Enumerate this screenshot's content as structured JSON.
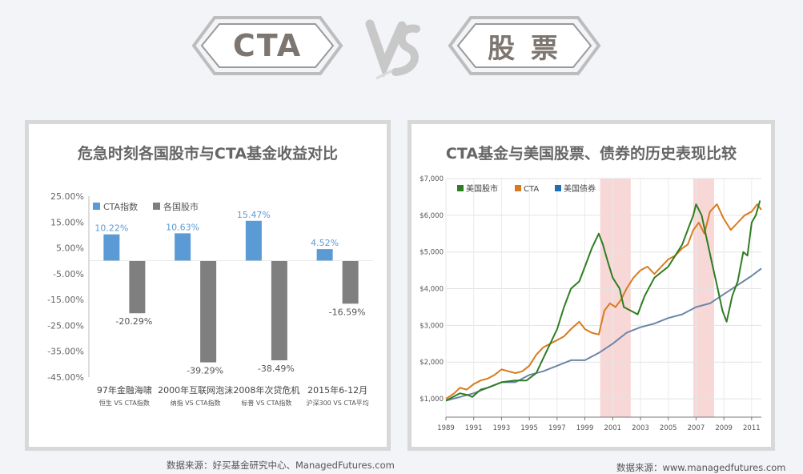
{
  "header": {
    "left_label": "CTA",
    "vs_label": "VS",
    "right_label": "股 票"
  },
  "left_panel": {
    "title": "危急时刻各国股市与CTA基金收益对比",
    "source": "数据来源：好买基金研究中心、ManagedFutures.com"
  },
  "right_panel": {
    "title": "CTA基金与美国股票、债券的历史表现比较",
    "source": "数据来源：www.managedfutures.com"
  },
  "chart_data": [
    {
      "type": "bar",
      "title": "危急时刻各国股市与CTA基金收益对比",
      "categories": [
        "97年金融海啸",
        "2000年互联网泡沫",
        "2008年次贷危机",
        "2015年6-12月"
      ],
      "subcategories": [
        "恒生 VS CTA指数",
        "纳指 VS CTA指数",
        "标普 VS CTA指数",
        "沪深300 VS CTA平均"
      ],
      "series": [
        {
          "name": "CTA指数",
          "values": [
            10.22,
            10.63,
            15.47,
            4.52
          ],
          "labels": [
            "10.22%",
            "10.63%",
            "15.47%",
            "4.52%"
          ],
          "color": "#5b9bd5"
        },
        {
          "name": "各国股市",
          "values": [
            -20.29,
            -39.29,
            -38.49,
            -16.59
          ],
          "labels": [
            "-20.29%",
            "-39.29%",
            "-38.49%",
            "-16.59%"
          ],
          "color": "#7f7f7f"
        }
      ],
      "ylim": [
        -45,
        25
      ],
      "yticks": [
        25,
        15,
        5,
        -5,
        -15,
        -25,
        -35,
        -45
      ],
      "ytick_labels": [
        "25.00%",
        "15.00%",
        "5.00%",
        "-5.00%",
        "-15.00%",
        "-25.00%",
        "-35.00%",
        "-45.00%"
      ],
      "legend_position": "top-left",
      "grid": false
    },
    {
      "type": "line",
      "title": "CTA基金与美国股票、债券的历史表现比较",
      "xlim": [
        1989,
        2011.7
      ],
      "ylim": [
        500,
        7000
      ],
      "xticks": [
        1989,
        1991,
        1993,
        1995,
        1997,
        1999,
        2001,
        2003,
        2005,
        2007,
        2009,
        2011
      ],
      "xtick_labels": [
        "1989",
        "1991",
        "1993",
        "1995",
        "1997",
        "1999",
        "2001",
        "2003",
        "2005",
        "2007",
        "2009",
        "2011"
      ],
      "yticks": [
        1000,
        2000,
        3000,
        4000,
        5000,
        6000,
        7000
      ],
      "ytick_labels": [
        "$1,000",
        "$2,000",
        "$3,000",
        "$4,000",
        "$5,000",
        "$6,000",
        "$7,000"
      ],
      "shaded_periods": [
        [
          2000.1,
          2002.3
        ],
        [
          2006.8,
          2008.3
        ]
      ],
      "legend_position": "top-left",
      "grid": true,
      "series": [
        {
          "name": "美国股市",
          "color": "#2e7d22",
          "x": [
            1989,
            1989.5,
            1990,
            1990.6,
            1990.9,
            1991.5,
            1992,
            1993,
            1994,
            1994.8,
            1995.5,
            1996,
            1996.5,
            1997,
            1997.5,
            1998,
            1998.6,
            1999,
            1999.5,
            2000,
            2000.3,
            2000.6,
            2001,
            2001.5,
            2001.8,
            2002.3,
            2002.8,
            2003.3,
            2004,
            2005,
            2005.5,
            2006,
            2006.5,
            2006.8,
            2007,
            2007.4,
            2007.8,
            2008.2,
            2008.5,
            2008.9,
            2009.2,
            2009.6,
            2010,
            2010.4,
            2010.7,
            2011,
            2011.3,
            2011.6
          ],
          "y": [
            950,
            1050,
            1150,
            1100,
            1050,
            1250,
            1300,
            1450,
            1500,
            1500,
            1700,
            2100,
            2500,
            2900,
            3500,
            4000,
            4200,
            4600,
            5100,
            5500,
            5200,
            4800,
            4300,
            4000,
            3500,
            3400,
            3300,
            3800,
            4300,
            4600,
            4900,
            5200,
            5700,
            6000,
            6300,
            6000,
            5300,
            4600,
            4100,
            3400,
            3100,
            3800,
            4200,
            5000,
            4900,
            5800,
            6000,
            6400
          ]
        },
        {
          "name": "CTA",
          "color": "#d87b1e",
          "x": [
            1989,
            1989.6,
            1990,
            1990.5,
            1991,
            1991.5,
            1992,
            1992.5,
            1993,
            1993.5,
            1994,
            1994.5,
            1995,
            1995.5,
            1996,
            1996.5,
            1997,
            1997.5,
            1998,
            1998.6,
            1999,
            1999.5,
            2000,
            2000.4,
            2000.8,
            2001.2,
            2001.6,
            2002,
            2002.5,
            2003,
            2003.5,
            2004,
            2004.5,
            2005,
            2005.5,
            2006,
            2006.4,
            2006.8,
            2007.2,
            2007.6,
            2008,
            2008.5,
            2009,
            2009.5,
            2010,
            2010.5,
            2011,
            2011.4,
            2011.7
          ],
          "y": [
            1000,
            1150,
            1300,
            1250,
            1400,
            1500,
            1550,
            1650,
            1800,
            1750,
            1700,
            1750,
            1900,
            2200,
            2400,
            2500,
            2600,
            2700,
            2900,
            3100,
            2900,
            2800,
            2750,
            3400,
            3600,
            3500,
            3700,
            4000,
            4300,
            4500,
            4600,
            4400,
            4600,
            4800,
            4900,
            5100,
            5200,
            5600,
            5800,
            5500,
            6100,
            6300,
            5900,
            5600,
            5800,
            6000,
            6100,
            6300,
            6150
          ]
        },
        {
          "name": "美国债券",
          "color": "#6d86a8",
          "x": [
            1989,
            1990,
            1991,
            1992,
            1993,
            1994,
            1995,
            1996,
            1997,
            1998,
            1999,
            2000,
            2001,
            2002,
            2003,
            2004,
            2005,
            2006,
            2007,
            2008,
            2009,
            2010,
            2011,
            2011.7
          ],
          "y": [
            950,
            1050,
            1150,
            1300,
            1450,
            1450,
            1650,
            1750,
            1900,
            2050,
            2050,
            2250,
            2500,
            2800,
            2950,
            3050,
            3200,
            3300,
            3500,
            3600,
            3850,
            4100,
            4350,
            4550
          ]
        }
      ]
    }
  ]
}
